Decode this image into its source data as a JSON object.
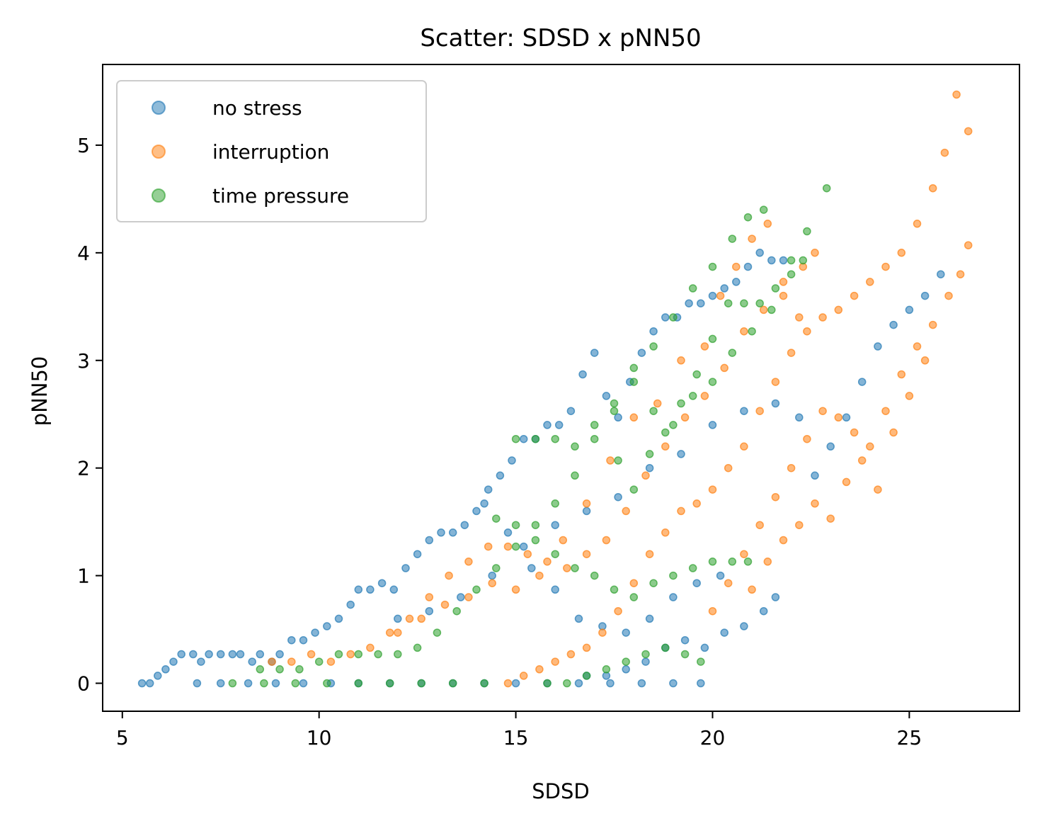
{
  "chart_data": {
    "type": "scatter",
    "title": "Scatter: SDSD x pNN50",
    "xlabel": "SDSD",
    "ylabel": "pNN50",
    "xlim": [
      4.5,
      27.8
    ],
    "ylim": [
      -0.26,
      5.75
    ],
    "x_ticks": [
      5,
      10,
      15,
      20,
      25
    ],
    "y_ticks": [
      0,
      1,
      2,
      3,
      4,
      5
    ],
    "grid": false,
    "legend_position": "top-left",
    "series": [
      {
        "name": "no stress",
        "color": "#1f77b4",
        "points": [
          [
            5.5,
            0.0
          ],
          [
            5.7,
            0.0
          ],
          [
            5.9,
            0.07
          ],
          [
            6.1,
            0.13
          ],
          [
            6.3,
            0.2
          ],
          [
            6.5,
            0.27
          ],
          [
            6.8,
            0.27
          ],
          [
            7.0,
            0.2
          ],
          [
            7.2,
            0.27
          ],
          [
            7.5,
            0.27
          ],
          [
            7.8,
            0.27
          ],
          [
            8.0,
            0.27
          ],
          [
            8.3,
            0.2
          ],
          [
            8.5,
            0.27
          ],
          [
            8.8,
            0.2
          ],
          [
            9.0,
            0.27
          ],
          [
            9.3,
            0.4
          ],
          [
            9.6,
            0.4
          ],
          [
            9.9,
            0.47
          ],
          [
            10.2,
            0.53
          ],
          [
            10.5,
            0.6
          ],
          [
            10.8,
            0.73
          ],
          [
            11.0,
            0.87
          ],
          [
            11.3,
            0.87
          ],
          [
            11.6,
            0.93
          ],
          [
            11.9,
            0.87
          ],
          [
            12.2,
            1.07
          ],
          [
            12.5,
            1.2
          ],
          [
            12.8,
            1.33
          ],
          [
            13.1,
            1.4
          ],
          [
            13.4,
            1.4
          ],
          [
            13.7,
            1.47
          ],
          [
            14.0,
            1.6
          ],
          [
            14.3,
            1.8
          ],
          [
            14.6,
            1.93
          ],
          [
            14.9,
            2.07
          ],
          [
            15.2,
            2.27
          ],
          [
            15.5,
            2.27
          ],
          [
            15.8,
            2.4
          ],
          [
            16.1,
            2.4
          ],
          [
            16.4,
            2.53
          ],
          [
            16.7,
            2.87
          ],
          [
            17.0,
            3.07
          ],
          [
            17.3,
            2.67
          ],
          [
            17.6,
            2.47
          ],
          [
            17.9,
            2.8
          ],
          [
            18.2,
            3.07
          ],
          [
            18.5,
            3.27
          ],
          [
            18.8,
            3.4
          ],
          [
            19.1,
            3.4
          ],
          [
            19.4,
            3.53
          ],
          [
            19.7,
            3.53
          ],
          [
            20.0,
            3.6
          ],
          [
            20.3,
            3.67
          ],
          [
            20.6,
            3.73
          ],
          [
            20.9,
            3.87
          ],
          [
            21.2,
            4.0
          ],
          [
            21.5,
            3.93
          ],
          [
            21.8,
            3.93
          ],
          [
            6.9,
            0.0
          ],
          [
            7.5,
            0.0
          ],
          [
            8.2,
            0.0
          ],
          [
            8.9,
            0.0
          ],
          [
            9.6,
            0.0
          ],
          [
            10.3,
            0.0
          ],
          [
            11.0,
            0.0
          ],
          [
            11.8,
            0.0
          ],
          [
            12.6,
            0.0
          ],
          [
            13.4,
            0.0
          ],
          [
            14.2,
            0.0
          ],
          [
            15.0,
            0.0
          ],
          [
            15.8,
            0.0
          ],
          [
            16.6,
            0.0
          ],
          [
            17.4,
            0.0
          ],
          [
            18.2,
            0.0
          ],
          [
            19.0,
            0.0
          ],
          [
            19.7,
            0.0
          ],
          [
            16.8,
            0.07
          ],
          [
            17.3,
            0.07
          ],
          [
            17.8,
            0.13
          ],
          [
            18.3,
            0.2
          ],
          [
            18.8,
            0.33
          ],
          [
            19.3,
            0.4
          ],
          [
            19.8,
            0.33
          ],
          [
            20.3,
            0.47
          ],
          [
            20.8,
            0.53
          ],
          [
            21.3,
            0.67
          ],
          [
            21.6,
            0.8
          ],
          [
            12.0,
            0.6
          ],
          [
            12.8,
            0.67
          ],
          [
            13.6,
            0.8
          ],
          [
            14.4,
            1.0
          ],
          [
            15.2,
            1.27
          ],
          [
            16.0,
            1.47
          ],
          [
            16.8,
            1.6
          ],
          [
            17.6,
            1.73
          ],
          [
            18.4,
            2.0
          ],
          [
            19.2,
            2.13
          ],
          [
            20.0,
            2.4
          ],
          [
            20.8,
            2.53
          ],
          [
            21.6,
            2.6
          ],
          [
            22.2,
            2.47
          ],
          [
            22.6,
            1.93
          ],
          [
            23.0,
            2.2
          ],
          [
            23.4,
            2.47
          ],
          [
            23.8,
            2.8
          ],
          [
            24.2,
            3.13
          ],
          [
            24.6,
            3.33
          ],
          [
            25.0,
            3.47
          ],
          [
            25.4,
            3.6
          ],
          [
            25.8,
            3.8
          ],
          [
            14.2,
            1.67
          ],
          [
            14.8,
            1.4
          ],
          [
            15.4,
            1.07
          ],
          [
            16.0,
            0.87
          ],
          [
            16.6,
            0.6
          ],
          [
            17.2,
            0.53
          ],
          [
            17.8,
            0.47
          ],
          [
            18.4,
            0.6
          ],
          [
            19.0,
            0.8
          ],
          [
            19.6,
            0.93
          ],
          [
            20.2,
            1.0
          ]
        ]
      },
      {
        "name": "interruption",
        "color": "#ff7f0e",
        "points": [
          [
            8.8,
            0.2
          ],
          [
            9.3,
            0.2
          ],
          [
            9.8,
            0.27
          ],
          [
            10.3,
            0.2
          ],
          [
            10.8,
            0.27
          ],
          [
            11.3,
            0.33
          ],
          [
            11.8,
            0.47
          ],
          [
            12.3,
            0.6
          ],
          [
            12.8,
            0.8
          ],
          [
            13.3,
            1.0
          ],
          [
            13.8,
            1.13
          ],
          [
            14.3,
            1.27
          ],
          [
            14.8,
            1.27
          ],
          [
            15.3,
            1.2
          ],
          [
            15.8,
            1.13
          ],
          [
            16.3,
            1.07
          ],
          [
            16.8,
            1.2
          ],
          [
            17.3,
            1.33
          ],
          [
            17.8,
            1.6
          ],
          [
            18.3,
            1.93
          ],
          [
            18.8,
            2.2
          ],
          [
            19.3,
            2.47
          ],
          [
            19.8,
            2.67
          ],
          [
            20.3,
            2.93
          ],
          [
            20.8,
            3.27
          ],
          [
            21.3,
            3.47
          ],
          [
            21.8,
            3.6
          ],
          [
            22.3,
            3.87
          ],
          [
            22.6,
            4.0
          ],
          [
            14.8,
            0.0
          ],
          [
            15.2,
            0.07
          ],
          [
            15.6,
            0.13
          ],
          [
            16.0,
            0.2
          ],
          [
            16.4,
            0.27
          ],
          [
            16.8,
            0.33
          ],
          [
            17.2,
            0.47
          ],
          [
            17.6,
            0.67
          ],
          [
            18.0,
            0.93
          ],
          [
            18.4,
            1.2
          ],
          [
            18.8,
            1.4
          ],
          [
            19.2,
            1.6
          ],
          [
            19.6,
            1.67
          ],
          [
            20.0,
            1.8
          ],
          [
            20.4,
            2.0
          ],
          [
            20.8,
            2.2
          ],
          [
            21.2,
            2.53
          ],
          [
            21.6,
            2.8
          ],
          [
            22.0,
            3.07
          ],
          [
            22.4,
            3.27
          ],
          [
            22.8,
            3.4
          ],
          [
            23.2,
            3.47
          ],
          [
            23.6,
            3.6
          ],
          [
            24.0,
            3.73
          ],
          [
            24.4,
            3.87
          ],
          [
            24.8,
            4.0
          ],
          [
            25.2,
            4.27
          ],
          [
            25.6,
            4.6
          ],
          [
            25.9,
            4.93
          ],
          [
            26.2,
            5.47
          ],
          [
            26.5,
            5.13
          ],
          [
            20.0,
            0.67
          ],
          [
            20.4,
            0.93
          ],
          [
            20.8,
            1.2
          ],
          [
            21.2,
            1.47
          ],
          [
            21.6,
            1.73
          ],
          [
            22.0,
            2.0
          ],
          [
            22.4,
            2.27
          ],
          [
            22.8,
            2.53
          ],
          [
            23.2,
            2.47
          ],
          [
            23.6,
            2.33
          ],
          [
            24.0,
            2.2
          ],
          [
            24.4,
            2.53
          ],
          [
            24.8,
            2.87
          ],
          [
            25.2,
            3.13
          ],
          [
            25.6,
            3.33
          ],
          [
            26.0,
            3.6
          ],
          [
            26.3,
            3.8
          ],
          [
            26.5,
            4.07
          ],
          [
            21.0,
            0.87
          ],
          [
            21.4,
            1.13
          ],
          [
            21.8,
            1.33
          ],
          [
            22.2,
            1.47
          ],
          [
            22.6,
            1.67
          ],
          [
            23.0,
            1.53
          ],
          [
            23.4,
            1.87
          ],
          [
            23.8,
            2.07
          ],
          [
            24.2,
            1.8
          ],
          [
            24.6,
            2.33
          ],
          [
            25.0,
            2.67
          ],
          [
            25.4,
            3.0
          ],
          [
            12.0,
            0.47
          ],
          [
            12.6,
            0.6
          ],
          [
            13.2,
            0.73
          ],
          [
            13.8,
            0.8
          ],
          [
            14.4,
            0.93
          ],
          [
            15.0,
            0.87
          ],
          [
            15.6,
            1.0
          ],
          [
            16.2,
            1.33
          ],
          [
            16.8,
            1.67
          ],
          [
            17.4,
            2.07
          ],
          [
            18.0,
            2.47
          ],
          [
            18.6,
            2.6
          ],
          [
            19.2,
            3.0
          ],
          [
            19.8,
            3.13
          ],
          [
            20.2,
            3.6
          ],
          [
            20.6,
            3.87
          ],
          [
            21.0,
            4.13
          ],
          [
            21.4,
            4.27
          ],
          [
            21.8,
            3.73
          ],
          [
            22.2,
            3.4
          ]
        ]
      },
      {
        "name": "time pressure",
        "color": "#2ca02c",
        "points": [
          [
            7.8,
            0.0
          ],
          [
            8.6,
            0.0
          ],
          [
            9.4,
            0.0
          ],
          [
            10.2,
            0.0
          ],
          [
            11.0,
            0.0
          ],
          [
            11.8,
            0.0
          ],
          [
            12.6,
            0.0
          ],
          [
            13.4,
            0.0
          ],
          [
            14.2,
            0.0
          ],
          [
            8.5,
            0.13
          ],
          [
            9.0,
            0.13
          ],
          [
            9.5,
            0.13
          ],
          [
            10.0,
            0.2
          ],
          [
            10.5,
            0.27
          ],
          [
            11.0,
            0.27
          ],
          [
            11.5,
            0.27
          ],
          [
            12.0,
            0.27
          ],
          [
            12.5,
            0.33
          ],
          [
            13.0,
            0.47
          ],
          [
            13.5,
            0.67
          ],
          [
            14.0,
            0.87
          ],
          [
            14.5,
            1.07
          ],
          [
            15.0,
            1.27
          ],
          [
            15.5,
            1.47
          ],
          [
            16.0,
            1.67
          ],
          [
            16.5,
            1.93
          ],
          [
            17.0,
            2.27
          ],
          [
            17.5,
            2.53
          ],
          [
            18.0,
            2.8
          ],
          [
            18.5,
            3.13
          ],
          [
            19.0,
            3.4
          ],
          [
            19.5,
            3.67
          ],
          [
            20.0,
            3.87
          ],
          [
            20.5,
            4.13
          ],
          [
            20.9,
            4.33
          ],
          [
            21.3,
            4.4
          ],
          [
            15.0,
            2.27
          ],
          [
            15.5,
            2.27
          ],
          [
            16.0,
            2.27
          ],
          [
            16.5,
            2.2
          ],
          [
            17.0,
            2.4
          ],
          [
            17.5,
            2.6
          ],
          [
            18.0,
            2.93
          ],
          [
            18.5,
            2.53
          ],
          [
            19.0,
            2.4
          ],
          [
            19.5,
            2.67
          ],
          [
            20.0,
            2.8
          ],
          [
            20.5,
            3.07
          ],
          [
            21.0,
            3.27
          ],
          [
            21.5,
            3.47
          ],
          [
            22.0,
            3.93
          ],
          [
            22.4,
            4.2
          ],
          [
            22.9,
            4.6
          ],
          [
            14.5,
            1.53
          ],
          [
            15.0,
            1.47
          ],
          [
            15.5,
            1.33
          ],
          [
            16.0,
            1.2
          ],
          [
            16.5,
            1.07
          ],
          [
            17.0,
            1.0
          ],
          [
            17.5,
            0.87
          ],
          [
            18.0,
            0.8
          ],
          [
            18.5,
            0.93
          ],
          [
            19.0,
            1.0
          ],
          [
            19.5,
            1.07
          ],
          [
            20.0,
            1.13
          ],
          [
            20.5,
            1.13
          ],
          [
            20.9,
            1.13
          ],
          [
            15.8,
            0.0
          ],
          [
            16.3,
            0.0
          ],
          [
            16.8,
            0.07
          ],
          [
            17.3,
            0.13
          ],
          [
            17.8,
            0.2
          ],
          [
            18.3,
            0.27
          ],
          [
            18.8,
            0.33
          ],
          [
            19.3,
            0.27
          ],
          [
            19.7,
            0.2
          ],
          [
            17.6,
            2.07
          ],
          [
            18.0,
            1.8
          ],
          [
            18.4,
            2.13
          ],
          [
            18.8,
            2.33
          ],
          [
            19.2,
            2.6
          ],
          [
            19.6,
            2.87
          ],
          [
            20.0,
            3.2
          ],
          [
            20.4,
            3.53
          ],
          [
            20.8,
            3.53
          ],
          [
            21.2,
            3.53
          ],
          [
            21.6,
            3.67
          ],
          [
            22.0,
            3.8
          ],
          [
            22.3,
            3.93
          ]
        ]
      }
    ]
  }
}
